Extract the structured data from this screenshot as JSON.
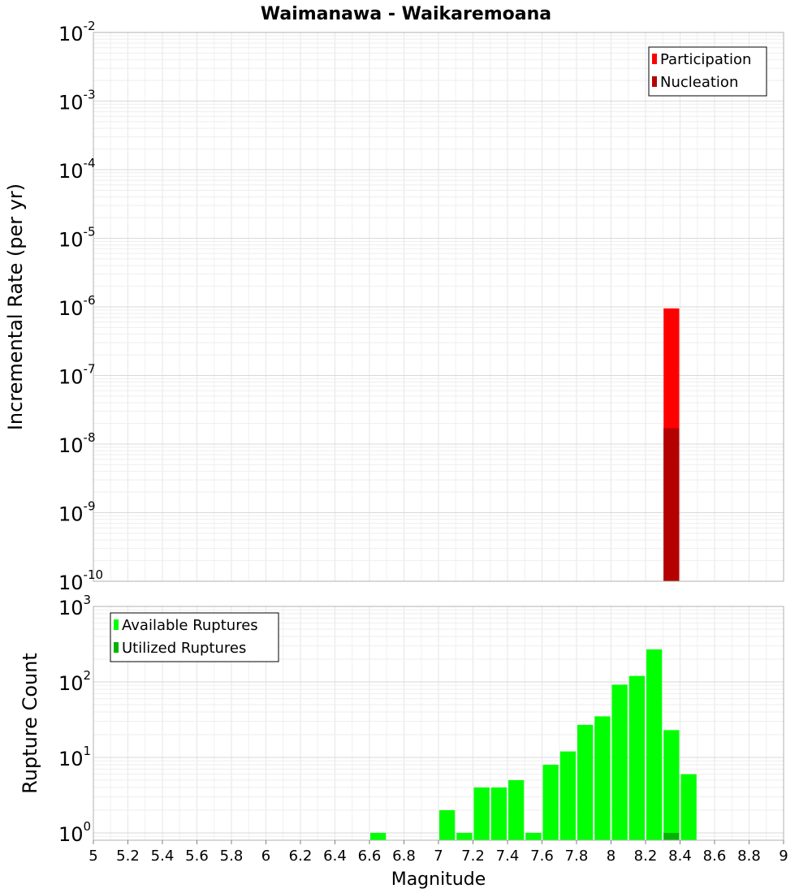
{
  "title": "Waimanawa - Waikaremoana",
  "chart_data": [
    {
      "type": "bar",
      "id": "rate-panel",
      "ylabel": "Incremental Rate (per yr)",
      "yscale": "log",
      "ylim": [
        1e-10,
        0.01
      ],
      "ytick_base": "10",
      "yticks": [
        {
          "exp": "-10",
          "value": 1e-10
        },
        {
          "exp": "-9",
          "value": 1e-09
        },
        {
          "exp": "-8",
          "value": 1e-08
        },
        {
          "exp": "-7",
          "value": 1e-07
        },
        {
          "exp": "-6",
          "value": 1e-06
        },
        {
          "exp": "-5",
          "value": 1e-05
        },
        {
          "exp": "-4",
          "value": 0.0001
        },
        {
          "exp": "-3",
          "value": 0.001
        },
        {
          "exp": "-2",
          "value": 0.01
        }
      ],
      "grid": true,
      "legend_position": "top-right",
      "series": [
        {
          "name": "Participation",
          "color": "#ff0000",
          "points": [
            {
              "x": 8.35,
              "y": 9.5e-07
            }
          ]
        },
        {
          "name": "Nucleation",
          "color": "#b40000",
          "points": [
            {
              "x": 8.35,
              "y": 1.7e-08
            }
          ]
        }
      ]
    },
    {
      "type": "bar",
      "id": "count-panel",
      "xlabel": "Magnitude",
      "ylabel": "Rupture Count",
      "yscale": "log",
      "ylim": [
        0.8,
        1000
      ],
      "ytick_base": "10",
      "yticks": [
        {
          "exp": "0",
          "value": 1
        },
        {
          "exp": "1",
          "value": 10
        },
        {
          "exp": "2",
          "value": 100
        },
        {
          "exp": "3",
          "value": 1000
        }
      ],
      "xlim": [
        5,
        9
      ],
      "xticks": [
        "5",
        "5.2",
        "5.4",
        "5.6",
        "5.8",
        "6",
        "6.2",
        "6.4",
        "6.6",
        "6.8",
        "7",
        "7.2",
        "7.4",
        "7.6",
        "7.8",
        "8",
        "8.2",
        "8.4",
        "8.6",
        "8.8",
        "9"
      ],
      "grid": true,
      "legend_position": "top-left",
      "series": [
        {
          "name": "Available Ruptures",
          "color": "#00ff00",
          "points": [
            {
              "x": 6.65,
              "y": 1
            },
            {
              "x": 7.05,
              "y": 2
            },
            {
              "x": 7.15,
              "y": 1
            },
            {
              "x": 7.25,
              "y": 4
            },
            {
              "x": 7.35,
              "y": 4
            },
            {
              "x": 7.45,
              "y": 5
            },
            {
              "x": 7.55,
              "y": 1
            },
            {
              "x": 7.65,
              "y": 8
            },
            {
              "x": 7.75,
              "y": 12
            },
            {
              "x": 7.85,
              "y": 27
            },
            {
              "x": 7.95,
              "y": 35
            },
            {
              "x": 8.05,
              "y": 92
            },
            {
              "x": 8.15,
              "y": 120
            },
            {
              "x": 8.25,
              "y": 270
            },
            {
              "x": 8.35,
              "y": 23
            },
            {
              "x": 8.45,
              "y": 6
            }
          ]
        },
        {
          "name": "Utilized Ruptures",
          "color": "#00b400",
          "points": [
            {
              "x": 8.35,
              "y": 1
            }
          ]
        }
      ]
    }
  ]
}
